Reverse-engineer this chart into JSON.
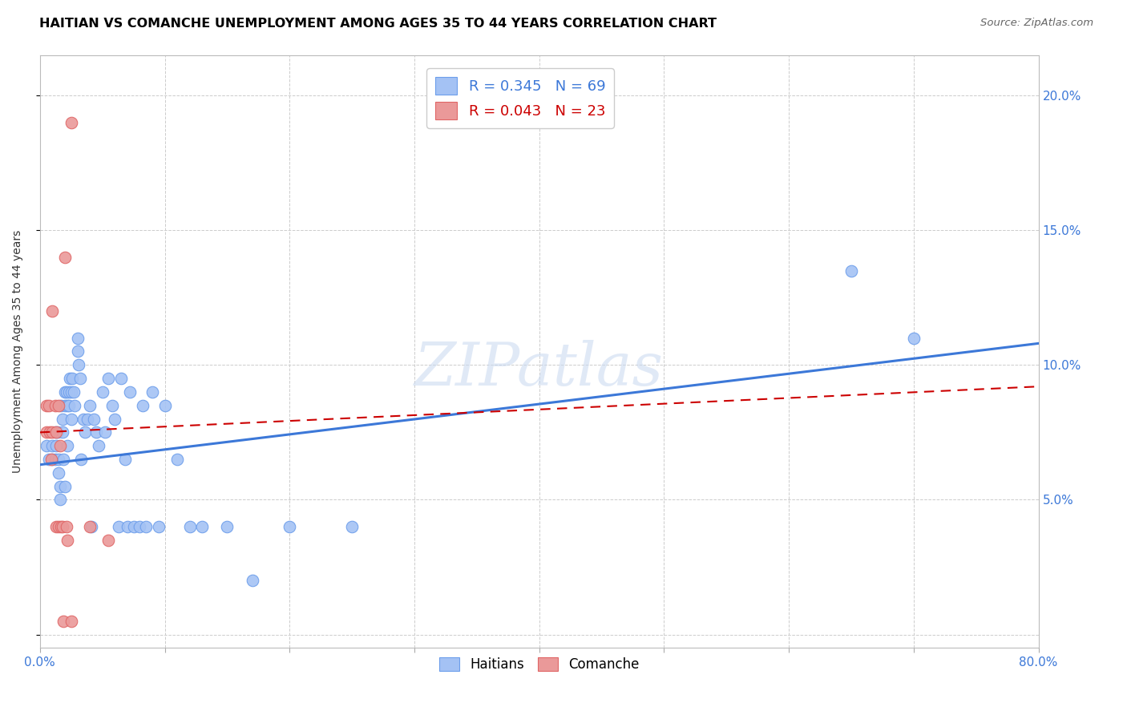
{
  "title": "HAITIAN VS COMANCHE UNEMPLOYMENT AMONG AGES 35 TO 44 YEARS CORRELATION CHART",
  "source": "Source: ZipAtlas.com",
  "ylabel": "Unemployment Among Ages 35 to 44 years",
  "xlim": [
    0.0,
    0.8
  ],
  "ylim": [
    -0.005,
    0.215
  ],
  "x_ticks": [
    0.0,
    0.1,
    0.2,
    0.3,
    0.4,
    0.5,
    0.6,
    0.7,
    0.8
  ],
  "x_tick_labels_show": [
    "0.0%",
    "",
    "",
    "",
    "",
    "",
    "",
    "",
    "80.0%"
  ],
  "y_ticks": [
    0.0,
    0.05,
    0.1,
    0.15,
    0.2
  ],
  "y_tick_labels_right": [
    "",
    "5.0%",
    "10.0%",
    "15.0%",
    "20.0%"
  ],
  "haitians_color": "#a4c2f4",
  "comanche_color": "#ea9999",
  "haitians_edge_color": "#6d9eeb",
  "comanche_edge_color": "#e06666",
  "haitians_line_color": "#3c78d8",
  "comanche_line_color": "#cc0000",
  "watermark_text": "ZIPatlas",
  "legend_r_haitians": "R = 0.345",
  "legend_n_haitians": "N = 69",
  "legend_r_comanche": "R = 0.043",
  "legend_n_comanche": "N = 23",
  "haitians_x": [
    0.005,
    0.007,
    0.01,
    0.01,
    0.012,
    0.012,
    0.013,
    0.014,
    0.015,
    0.015,
    0.016,
    0.016,
    0.017,
    0.018,
    0.018,
    0.019,
    0.02,
    0.02,
    0.02,
    0.021,
    0.022,
    0.022,
    0.023,
    0.023,
    0.024,
    0.025,
    0.025,
    0.026,
    0.027,
    0.028,
    0.03,
    0.03,
    0.031,
    0.032,
    0.033,
    0.035,
    0.036,
    0.038,
    0.04,
    0.041,
    0.043,
    0.045,
    0.047,
    0.05,
    0.052,
    0.055,
    0.058,
    0.06,
    0.063,
    0.065,
    0.068,
    0.07,
    0.072,
    0.075,
    0.08,
    0.082,
    0.085,
    0.09,
    0.095,
    0.1,
    0.11,
    0.12,
    0.13,
    0.15,
    0.17,
    0.2,
    0.25,
    0.65,
    0.7
  ],
  "haitians_y": [
    0.07,
    0.065,
    0.07,
    0.065,
    0.075,
    0.065,
    0.07,
    0.075,
    0.065,
    0.06,
    0.055,
    0.05,
    0.085,
    0.08,
    0.075,
    0.065,
    0.09,
    0.085,
    0.055,
    0.09,
    0.085,
    0.07,
    0.09,
    0.085,
    0.095,
    0.09,
    0.08,
    0.095,
    0.09,
    0.085,
    0.11,
    0.105,
    0.1,
    0.095,
    0.065,
    0.08,
    0.075,
    0.08,
    0.085,
    0.04,
    0.08,
    0.075,
    0.07,
    0.09,
    0.075,
    0.095,
    0.085,
    0.08,
    0.04,
    0.095,
    0.065,
    0.04,
    0.09,
    0.04,
    0.04,
    0.085,
    0.04,
    0.09,
    0.04,
    0.085,
    0.065,
    0.04,
    0.04,
    0.04,
    0.02,
    0.04,
    0.04,
    0.135,
    0.11
  ],
  "comanche_x": [
    0.005,
    0.005,
    0.007,
    0.008,
    0.009,
    0.01,
    0.01,
    0.012,
    0.013,
    0.013,
    0.015,
    0.015,
    0.016,
    0.017,
    0.018,
    0.019,
    0.02,
    0.021,
    0.022,
    0.025,
    0.025,
    0.04,
    0.055
  ],
  "comanche_y": [
    0.085,
    0.075,
    0.085,
    0.075,
    0.065,
    0.12,
    0.075,
    0.085,
    0.075,
    0.04,
    0.085,
    0.04,
    0.07,
    0.04,
    0.04,
    0.005,
    0.14,
    0.04,
    0.035,
    0.005,
    0.19,
    0.04,
    0.035
  ],
  "haitians_trend_x": [
    0.0,
    0.8
  ],
  "haitians_trend_y": [
    0.063,
    0.108
  ],
  "comanche_trend_x": [
    0.0,
    0.8
  ],
  "comanche_trend_y": [
    0.075,
    0.092
  ]
}
